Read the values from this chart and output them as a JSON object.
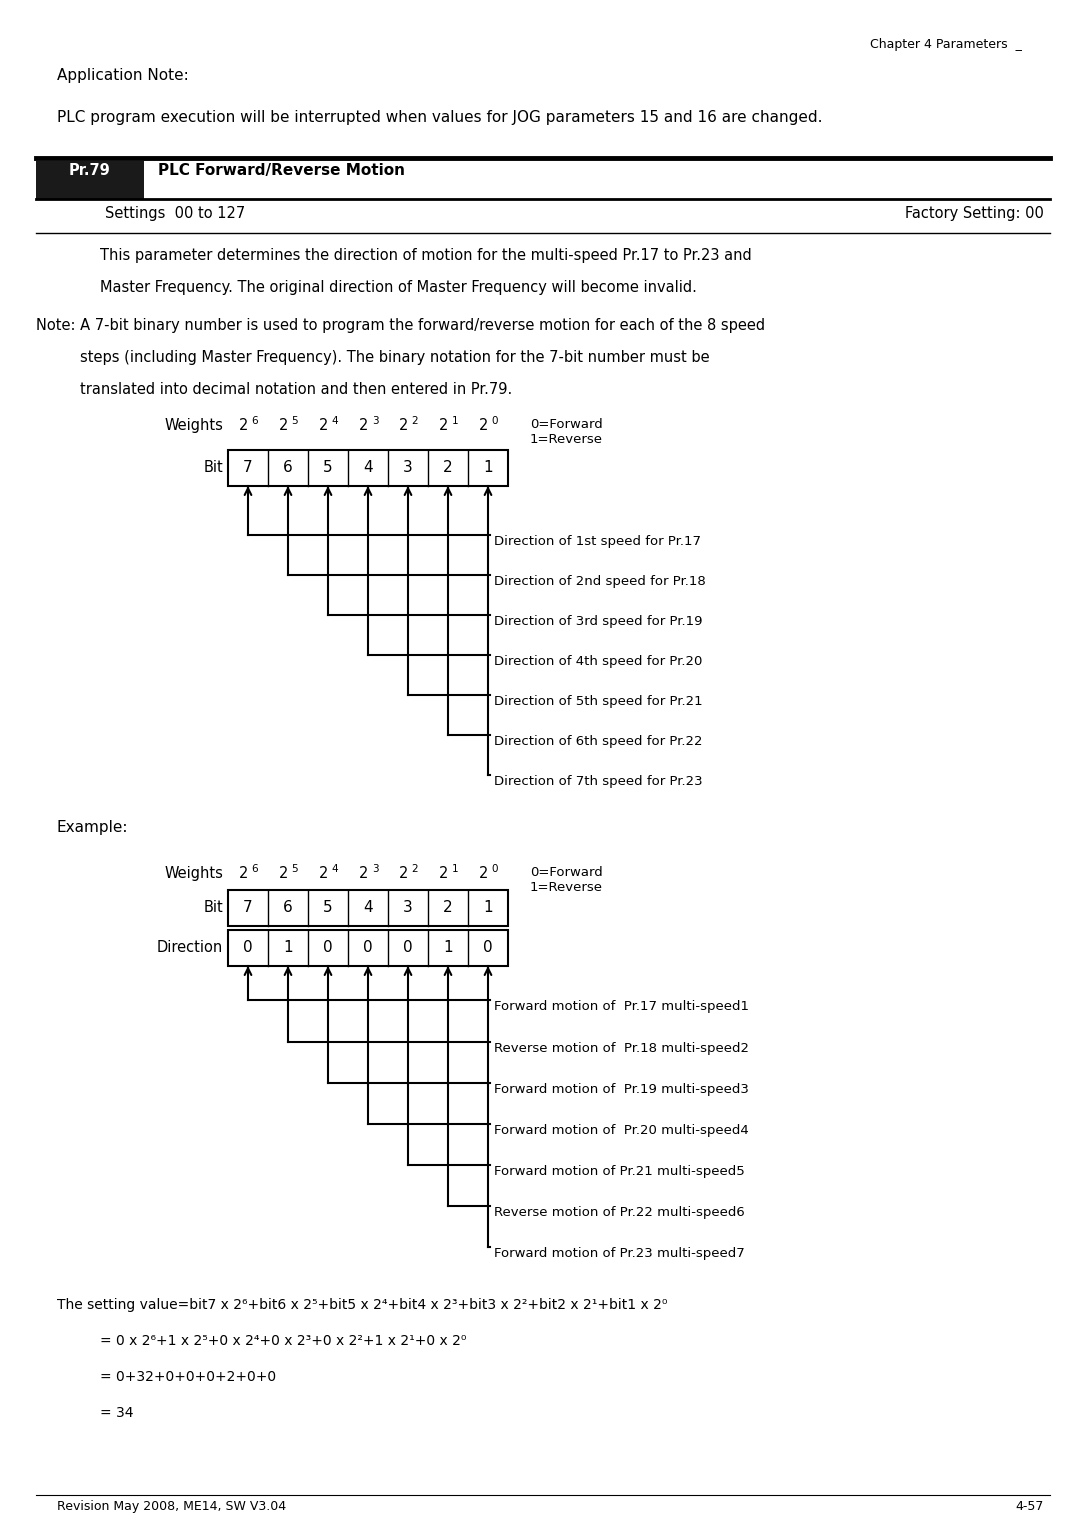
{
  "page_header": "Chapter 4 Parameters  _",
  "app_note_label": "Application Note:",
  "app_note_text": "PLC program execution will be interrupted when values for JOG parameters 15 and 16 are changed.",
  "pr79_label": "Pr.79",
  "pr79_title": "PLC Forward/Reverse Motion",
  "settings_label": "Settings  00 to 127",
  "factory_label": "Factory Setting: 00",
  "desc1": "This parameter determines the direction of motion for the multi-speed Pr.17 to Pr.23 and",
  "desc2": "Master Frequency. The original direction of Master Frequency will become invalid.",
  "note1": "Note: A 7-bit binary number is used to program the forward/reverse motion for each of the 8 speed",
  "note2": "steps (including Master Frequency). The binary notation for the 7-bit number must be",
  "note3": "translated into decimal notation and then entered in Pr.79.",
  "weights_label": "Weights",
  "bit_label": "Bit",
  "bit_values": [
    "7",
    "6",
    "5",
    "4",
    "3",
    "2",
    "1"
  ],
  "exponents": [
    "6",
    "5",
    "4",
    "3",
    "2",
    "1",
    "0"
  ],
  "forward_reverse_label": "0=Forward\n1=Reverse",
  "diagram1_arrows": [
    "Direction of 1st speed for Pr.17",
    "Direction of 2nd speed for Pr.18",
    "Direction of 3rd speed for Pr.19",
    "Direction of 4th speed for Pr.20",
    "Direction of 5th speed for Pr.21",
    "Direction of 6th speed for Pr.22",
    "Direction of 7th speed for Pr.23"
  ],
  "example_label": "Example:",
  "ex_weights_label": "Weights",
  "ex_bit_label": "Bit",
  "ex_direction_label": "Direction",
  "ex_bit_values": [
    "7",
    "6",
    "5",
    "4",
    "3",
    "2",
    "1"
  ],
  "ex_dir_values": [
    "0",
    "1",
    "0",
    "0",
    "0",
    "1",
    "0"
  ],
  "ex_forward_reverse_label": "0=Forward\n1=Reverse",
  "diagram2_arrows": [
    "Forward motion of  Pr.17 multi-speed1",
    "Reverse motion of  Pr.18 multi-speed2",
    "Forward motion of  Pr.19 multi-speed3",
    "Forward motion of  Pr.20 multi-speed4",
    "Forward motion of Pr.21 multi-speed5",
    "Reverse motion of Pr.22 multi-speed6",
    "Forward motion of Pr.23 multi-speed7"
  ],
  "formula_line1": "The setting value=bit7 x 2⁶+bit6 x 2⁵+bit5 x 2⁴+bit4 x 2³+bit3 x 2²+bit2 x 2¹+bit1 x 2⁰",
  "formula_line2": "= 0 x 2⁶+1 x 2⁵+0 x 2⁴+0 x 2³+0 x 2²+1 x 2¹+0 x 2⁰",
  "formula_line3": "= 0+32+0+0+0+2+0+0",
  "formula_line4": "= 34",
  "footer_left": "Revision May 2008, ME14, SW V3.04",
  "footer_right": "4-57",
  "bg_color": "#ffffff",
  "text_color": "#000000",
  "pr_box_bg": "#1a1a1a",
  "pr_box_fg": "#ffffff"
}
